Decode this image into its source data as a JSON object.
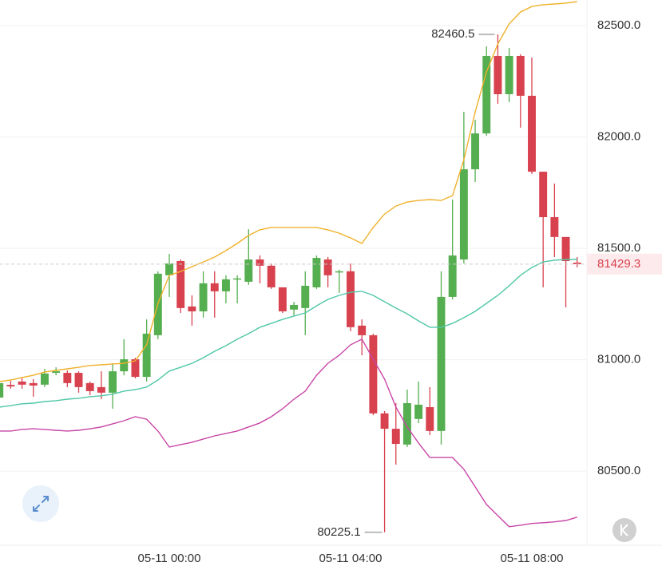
{
  "chart_data": {
    "type": "candlestick",
    "x": [
      -3.75,
      -3.5,
      -3.25,
      -3,
      -2.75,
      -2.5,
      -2.25,
      -2,
      -1.75,
      -1.5,
      -1.25,
      -1,
      -0.75,
      -0.5,
      -0.25,
      0,
      0.25,
      0.5,
      0.75,
      1,
      1.25,
      1.5,
      1.75,
      2,
      2.25,
      2.5,
      2.75,
      3,
      3.25,
      3.5,
      3.75,
      4,
      4.25,
      4.5,
      4.75,
      5,
      5.25,
      5.5,
      5.75,
      6,
      6.25,
      6.5,
      6.75,
      7,
      7.25,
      7.5,
      7.75,
      8,
      8.25,
      8.5,
      8.75,
      9
    ],
    "open": [
      80830,
      80887,
      80902,
      80895,
      80888,
      80941,
      80941,
      80941,
      80895,
      80877,
      80852,
      80948,
      81002,
      80923,
      81110,
      81379,
      81443,
      81239,
      81217,
      81343,
      81307,
      81361,
      81350,
      81450,
      81422,
      81325,
      81225,
      81232,
      81325,
      81450,
      81393,
      81397,
      81153,
      81110,
      80759,
      80690,
      80619,
      80734,
      80787,
      80680,
      81282,
      81450,
      81855,
      82016,
      82364,
      82192,
      82364,
      82185,
      81844,
      81640,
      81551,
      81436
    ],
    "high": [
      80909,
      80905,
      80920,
      80913,
      80959,
      80966,
      80952,
      80948,
      80902,
      80948,
      80984,
      81092,
      81009,
      81181,
      81397,
      81475,
      81450,
      81289,
      81397,
      81397,
      81379,
      81379,
      81586,
      81468,
      81432,
      81325,
      81260,
      81397,
      81468,
      81461,
      81404,
      81432,
      81181,
      81117,
      80769,
      80805,
      80866,
      80902,
      80877,
      81397,
      81719,
      82113,
      82077,
      82407,
      82460.5,
      82400,
      82371,
      82357,
      81844,
      81791,
      81551,
      81461
    ],
    "low": [
      80823,
      80870,
      80870,
      80834,
      80877,
      80930,
      80877,
      80852,
      80841,
      80823,
      80780,
      80930,
      80916,
      80902,
      81092,
      81282,
      81210,
      81153,
      81189,
      81189,
      81253,
      81253,
      81336,
      81343,
      81318,
      81210,
      81199,
      81110,
      81318,
      81325,
      81300,
      81128,
      81020,
      80751,
      80225.1,
      80529,
      80608,
      80715,
      80662,
      80619,
      81271,
      81432,
      81798,
      82006,
      82149,
      82156,
      82042,
      81834,
      81325,
      81461,
      81235,
      81415
    ],
    "close": [
      80895,
      80880,
      80888,
      80884,
      80938,
      80948,
      80895,
      80877,
      80859,
      80852,
      80948,
      81002,
      80923,
      81117,
      81386,
      81432,
      81232,
      81217,
      81343,
      81307,
      81361,
      81365,
      81450,
      81422,
      81325,
      81217,
      81246,
      81332,
      81457,
      81379,
      81397,
      81146,
      81110,
      80759,
      80690,
      80622,
      80805,
      80798,
      80680,
      81282,
      81468,
      81855,
      82016,
      82364,
      82192,
      82364,
      82185,
      81844,
      81640,
      81551,
      81443,
      81429.3
    ],
    "up_color": "#55ae4f",
    "down_color": "#d8424e",
    "overlays": [
      {
        "color": "#f0b12a",
        "values": [
          80902,
          80909,
          80920,
          80930,
          80945,
          80952,
          80959,
          80966,
          80974,
          80977,
          80981,
          80984,
          80995,
          81067,
          81253,
          81379,
          81396,
          81418,
          81439,
          81461,
          81490,
          81522,
          81558,
          81583,
          81594,
          81594,
          81594,
          81594,
          81594,
          81583,
          81568,
          81547,
          81522,
          81594,
          81654,
          81690,
          81708,
          81715,
          81719,
          81715,
          81737,
          81898,
          82113,
          82292,
          82418,
          82508,
          82561,
          82586,
          82594,
          82597,
          82601,
          82608
        ]
      },
      {
        "color": "#4fc7a6",
        "values": [
          80787,
          80794,
          80802,
          80805,
          80812,
          80816,
          80823,
          80827,
          80834,
          80838,
          80845,
          80859,
          80866,
          80877,
          80909,
          80949,
          80966,
          80984,
          81009,
          81038,
          81063,
          81092,
          81117,
          81146,
          81163,
          81181,
          81196,
          81210,
          81242,
          81271,
          81289,
          81303,
          81307,
          81289,
          81260,
          81232,
          81206,
          81174,
          81146,
          81146,
          81163,
          81189,
          81217,
          81253,
          81289,
          81332,
          81379,
          81414,
          81439,
          81447,
          81450,
          81450
        ]
      },
      {
        "color": "#c845a6",
        "values": [
          80680,
          80680,
          80687,
          80690,
          80687,
          80683,
          80680,
          80683,
          80690,
          80698,
          80712,
          80726,
          80744,
          80733,
          80680,
          80608,
          80619,
          80629,
          80644,
          80658,
          80669,
          80680,
          80698,
          80716,
          80744,
          80780,
          80823,
          80859,
          80930,
          80984,
          81020,
          81067,
          81092,
          81002,
          80913,
          80787,
          80698,
          80626,
          80561,
          80561,
          80561,
          80508,
          80429,
          80350,
          80300,
          80250,
          80257,
          80265,
          80268,
          80272,
          80278,
          80293
        ]
      }
    ],
    "max_marker": 82460.5,
    "min_marker": 80225.1,
    "last_price": 81429.3,
    "xlim": [
      -3.736,
      9.216
    ],
    "ylim": [
      80167,
      82615
    ],
    "xticks": [
      {
        "value": 0,
        "label": "05-11 00:00"
      },
      {
        "value": 4,
        "label": "05-11 04:00"
      },
      {
        "value": 8,
        "label": "05-11 08:00"
      }
    ],
    "yticks": [
      {
        "value": 80500,
        "label": "80500.0"
      },
      {
        "value": 81000,
        "label": "81000.0"
      },
      {
        "value": 81500,
        "label": "81500.0"
      },
      {
        "value": 82000,
        "label": "82000.0"
      },
      {
        "value": 82500,
        "label": "82500.0"
      }
    ],
    "grid": true
  }
}
